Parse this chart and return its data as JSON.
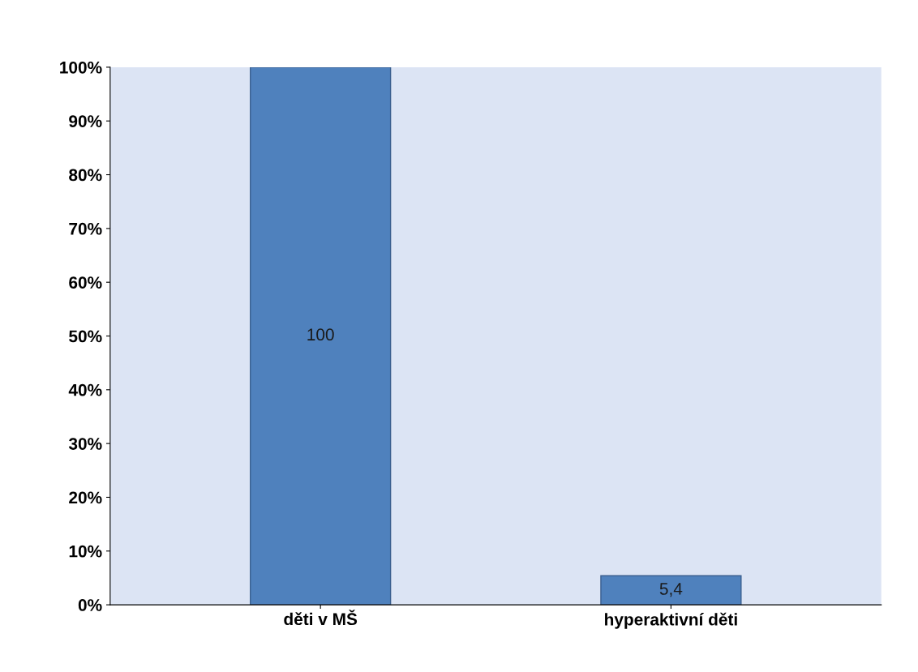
{
  "chart_data": {
    "type": "bar",
    "categories": [
      "děti v MŠ",
      "hyperaktivní děti"
    ],
    "values": [
      100,
      5.4
    ],
    "value_labels": [
      "100",
      "5,4"
    ],
    "color": "#4f81bd",
    "ylim": [
      0,
      100
    ],
    "yticks": [
      {
        "value": 0,
        "label": "0%"
      },
      {
        "value": 10,
        "label": "10%"
      },
      {
        "value": 20,
        "label": "20%"
      },
      {
        "value": 30,
        "label": "30%"
      },
      {
        "value": 40,
        "label": "40%"
      },
      {
        "value": 50,
        "label": "50%"
      },
      {
        "value": 60,
        "label": "60%"
      },
      {
        "value": 70,
        "label": "70%"
      },
      {
        "value": 80,
        "label": "80%"
      },
      {
        "value": 90,
        "label": "90%"
      },
      {
        "value": 100,
        "label": "100%"
      }
    ],
    "grid": false
  }
}
